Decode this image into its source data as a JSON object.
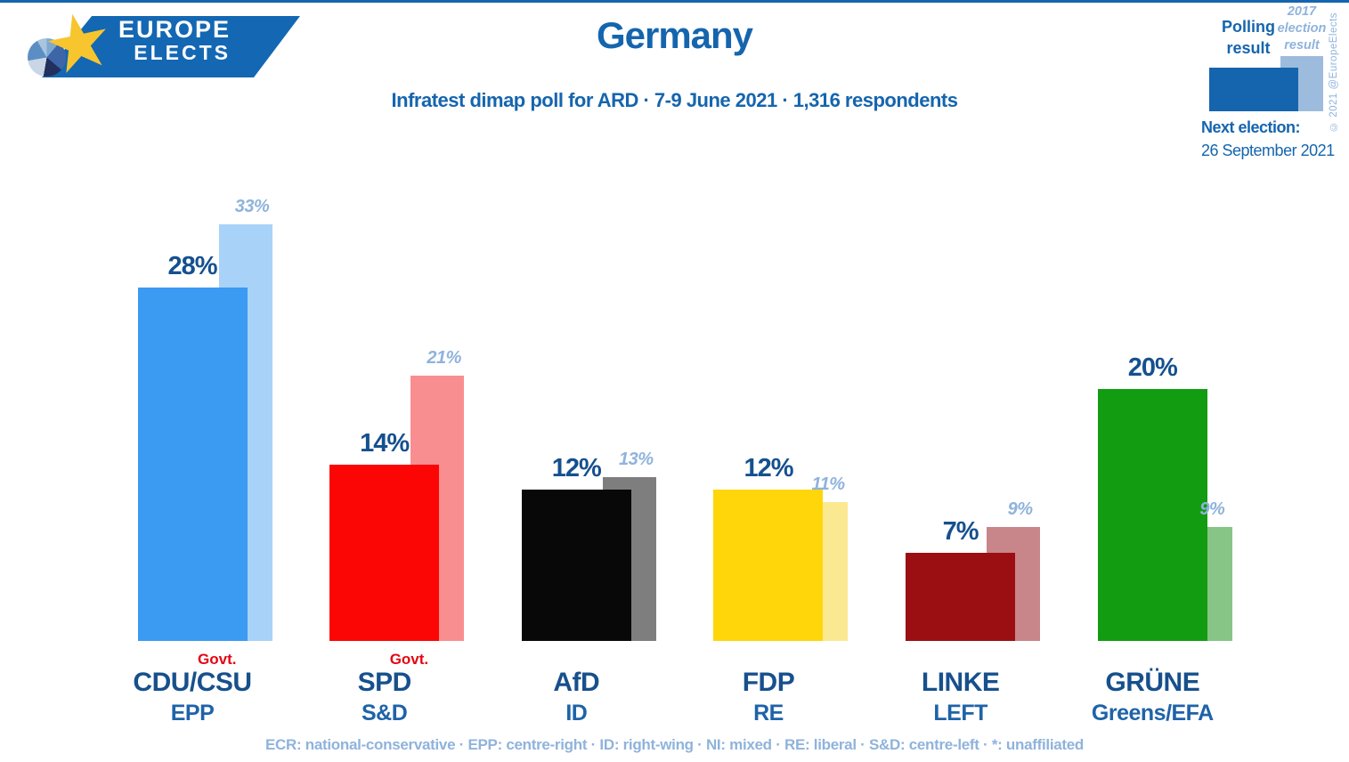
{
  "colors": {
    "accent_blue": "#1565AE",
    "dark_label_blue": "#15508F",
    "party_name_blue": "#17508C",
    "eu_group_blue": "#1E63A8",
    "light_blue": "#8FB3DC",
    "govt_red": "#E30613",
    "logo_banner_blue": "#1467B3",
    "logo_star_yellow": "#F7C52E"
  },
  "logo": {
    "line1": "EUROPE",
    "line2": "ELECTS"
  },
  "header": {
    "title": "Germany",
    "subtitle": "Infratest dimap poll for ARD · 7-9 June 2021 · 1,316 respondents"
  },
  "legend": {
    "polling_label": "Polling result",
    "election_label": "2017 election result",
    "polling_color": "#1565AE",
    "election_color": "#9DBBDC",
    "next_election_label": "Next election:",
    "next_election_date": "26 September 2021"
  },
  "copyright": "© 2021 @EuropeElects",
  "footer": "ECR: national-conservative · EPP: centre-right · ID: right-wing · NI: mixed · RE: liberal · S&D: centre-left · *: unaffiliated",
  "chart_data": {
    "type": "bar",
    "title": "Germany",
    "subtitle": "Infratest dimap poll for ARD · 7-9 June 2021 · 1,316 respondents",
    "unit": "%",
    "ylim": [
      0,
      35
    ],
    "grid": false,
    "legend_position": "top-right",
    "govt_label": "Govt.",
    "categories": [
      "CDU/CSU",
      "SPD",
      "AfD",
      "FDP",
      "LINKE",
      "GRÜNE"
    ],
    "series": [
      {
        "name": "Polling result",
        "values": [
          28,
          14,
          12,
          12,
          7,
          20
        ]
      },
      {
        "name": "2017 election result",
        "values": [
          33,
          21,
          13,
          11,
          9,
          9
        ]
      }
    ],
    "groups": [
      {
        "party": "CDU/CSU",
        "eu_group": "EPP",
        "polling_pct": 28,
        "election_2017_pct": 33,
        "govt": true,
        "bar_color": "#3B9AF2",
        "bar2017_color": "#A9D2F8"
      },
      {
        "party": "SPD",
        "eu_group": "S&D",
        "polling_pct": 14,
        "election_2017_pct": 21,
        "govt": true,
        "bar_color": "#FB0505",
        "bar2017_color": "#F98E90"
      },
      {
        "party": "AfD",
        "eu_group": "ID",
        "polling_pct": 12,
        "election_2017_pct": 13,
        "govt": false,
        "bar_color": "#080808",
        "bar2017_color": "#7E7E7E"
      },
      {
        "party": "FDP",
        "eu_group": "RE",
        "polling_pct": 12,
        "election_2017_pct": 11,
        "govt": false,
        "bar_color": "#FFD609",
        "bar2017_color": "#FBE992"
      },
      {
        "party": "LINKE",
        "eu_group": "LEFT",
        "polling_pct": 7,
        "election_2017_pct": 9,
        "govt": false,
        "bar_color": "#9B0E11",
        "bar2017_color": "#C8868B"
      },
      {
        "party": "GRÜNE",
        "eu_group": "Greens/EFA",
        "polling_pct": 20,
        "election_2017_pct": 9,
        "govt": false,
        "bar_color": "#119C11",
        "bar2017_color": "#86C586"
      }
    ]
  }
}
